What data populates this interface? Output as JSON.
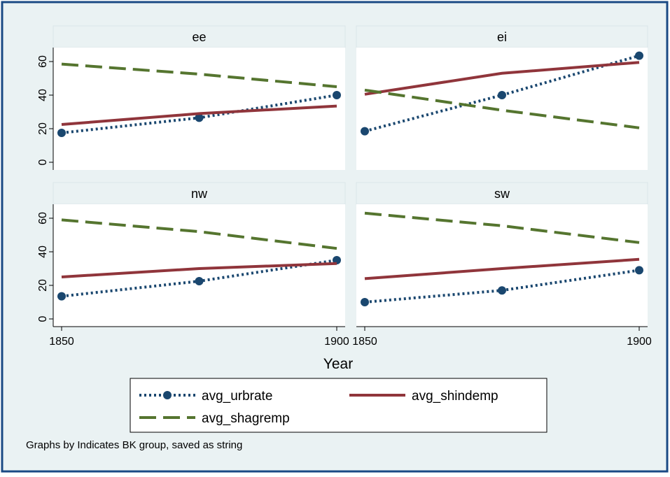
{
  "chart_data": {
    "type": "line",
    "xlabel": "Year",
    "ylabel": "",
    "xlim": [
      1850,
      1900
    ],
    "ylim": [
      0,
      60
    ],
    "x_ticks": [
      1850,
      1900
    ],
    "y_ticks": [
      0,
      20,
      40,
      60
    ],
    "grid": false,
    "legend_position": "bottom",
    "note": "Graphs by Indicates BK group, saved as string",
    "colors": {
      "frame_bg": "#eaf2f3",
      "frame_border": "#1a4a84",
      "plot_bg": "#ffffff",
      "strip_bg": "#eaf2f3",
      "avg_urbrate": "#1a476f",
      "avg_shindemp": "#90353b",
      "avg_shagremp": "#55752f"
    },
    "series_meta": [
      {
        "name": "avg_urbrate",
        "style": "dotted-markers"
      },
      {
        "name": "avg_shindemp",
        "style": "solid"
      },
      {
        "name": "avg_shagremp",
        "style": "dashed"
      }
    ],
    "panels": [
      {
        "title": "ee",
        "series": [
          {
            "name": "avg_urbrate",
            "x": [
              1850,
              1875,
              1900
            ],
            "values": [
              17.5,
              26.5,
              40
            ]
          },
          {
            "name": "avg_shindemp",
            "x": [
              1850,
              1875,
              1900
            ],
            "values": [
              22.5,
              29,
              33.5
            ]
          },
          {
            "name": "avg_shagremp",
            "x": [
              1850,
              1875,
              1900
            ],
            "values": [
              58.5,
              52.5,
              45
            ]
          }
        ]
      },
      {
        "title": "ei",
        "series": [
          {
            "name": "avg_urbrate",
            "x": [
              1850,
              1875,
              1900
            ],
            "values": [
              18.5,
              40,
              63.5
            ]
          },
          {
            "name": "avg_shindemp",
            "x": [
              1850,
              1875,
              1900
            ],
            "values": [
              40.5,
              53,
              59.5
            ]
          },
          {
            "name": "avg_shagremp",
            "x": [
              1850,
              1875,
              1900
            ],
            "values": [
              43,
              31,
              20.5
            ]
          }
        ]
      },
      {
        "title": "nw",
        "series": [
          {
            "name": "avg_urbrate",
            "x": [
              1850,
              1875,
              1900
            ],
            "values": [
              13.5,
              22.5,
              35
            ]
          },
          {
            "name": "avg_shindemp",
            "x": [
              1850,
              1875,
              1900
            ],
            "values": [
              25,
              30,
              33
            ]
          },
          {
            "name": "avg_shagremp",
            "x": [
              1850,
              1875,
              1900
            ],
            "values": [
              59,
              52,
              42
            ]
          }
        ]
      },
      {
        "title": "sw",
        "series": [
          {
            "name": "avg_urbrate",
            "x": [
              1850,
              1875,
              1900
            ],
            "values": [
              10,
              17,
              29
            ]
          },
          {
            "name": "avg_shindemp",
            "x": [
              1850,
              1875,
              1900
            ],
            "values": [
              24,
              30,
              35.5
            ]
          },
          {
            "name": "avg_shagremp",
            "x": [
              1850,
              1875,
              1900
            ],
            "values": [
              63,
              55.5,
              45.5
            ]
          }
        ]
      }
    ]
  }
}
